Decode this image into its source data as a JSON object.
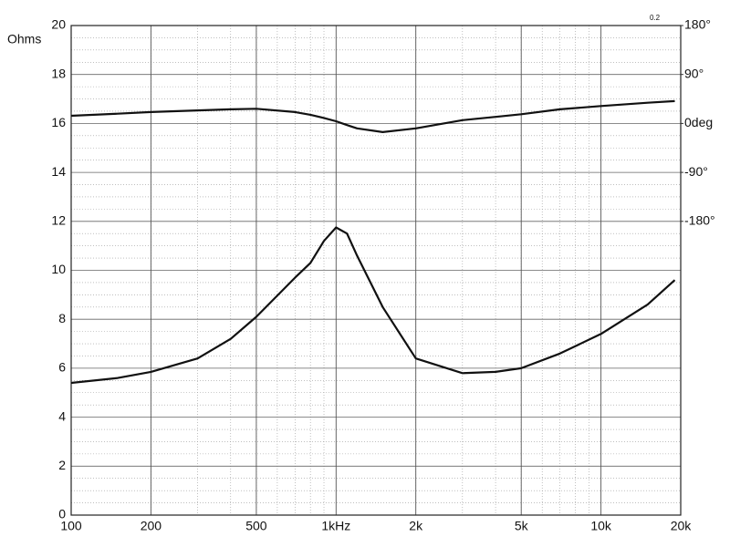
{
  "chart_data": {
    "type": "line",
    "ylabel": "Ohms",
    "annotation": "0.2",
    "log_x": true,
    "grid": true,
    "x": [
      100,
      150,
      200,
      300,
      400,
      500,
      700,
      800,
      900,
      1000,
      1100,
      1200,
      1500,
      2000,
      3000,
      4000,
      5000,
      7000,
      10000,
      15000,
      19000
    ],
    "series": [
      {
        "color": "#111111",
        "values": [
          5.4,
          5.6,
          5.85,
          6.4,
          7.2,
          8.1,
          9.7,
          10.3,
          11.2,
          11.75,
          11.5,
          10.6,
          8.5,
          6.4,
          5.8,
          5.85,
          6.0,
          6.6,
          7.4,
          8.6,
          9.6
        ]
      },
      {
        "color": "#111111",
        "axis": "y2",
        "values": [
          14,
          18,
          21,
          24,
          26,
          27,
          21,
          16,
          10,
          4,
          -3,
          -9,
          -16,
          -9,
          6,
          12,
          17,
          26,
          32,
          38,
          41
        ]
      }
    ],
    "xlim": [
      100,
      20000
    ],
    "xticks": [
      100,
      200,
      500,
      {
        "value": 1000,
        "label": "1kHz"
      },
      {
        "value": 2000,
        "label": "2k"
      },
      {
        "value": 5000,
        "label": "5k"
      },
      {
        "value": 10000,
        "label": "10k"
      },
      {
        "value": 20000,
        "label": "20k"
      }
    ],
    "ylim": [
      0,
      20
    ],
    "yticks": [
      0,
      2,
      4,
      6,
      8,
      10,
      12,
      14,
      16,
      18,
      20
    ],
    "y2lim": [
      -720,
      180
    ],
    "y2ticks": [
      {
        "value": 180,
        "label": "180°"
      },
      {
        "value": 90,
        "label": "90°"
      },
      {
        "value": 0,
        "label": "0deg"
      },
      {
        "value": -90,
        "label": "-90°"
      },
      {
        "value": -180,
        "label": "-180°"
      }
    ]
  }
}
